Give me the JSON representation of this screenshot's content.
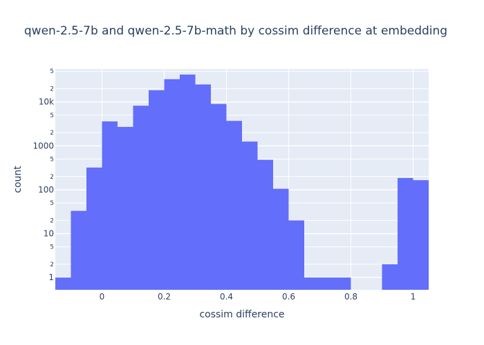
{
  "chart_data": {
    "type": "bar",
    "title": "qwen-2.5-7b and qwen-2.5-7b-math by cossim difference at embedding",
    "xlabel": "cossim difference",
    "ylabel": "count",
    "x_range": [
      -0.15,
      1.05
    ],
    "y_scale": "log",
    "y_range_log10": [
      -0.28,
      4.75
    ],
    "grid": true,
    "bin_width": 0.05,
    "bar_color": "#636efa",
    "plot_bgcolor": "#e5ecf6",
    "x_ticks": [
      {
        "value": 0,
        "label": "0"
      },
      {
        "value": 0.2,
        "label": "0.2"
      },
      {
        "value": 0.4,
        "label": "0.4"
      },
      {
        "value": 0.6,
        "label": "0.6"
      },
      {
        "value": 0.8,
        "label": "0.8"
      },
      {
        "value": 1,
        "label": "1"
      }
    ],
    "y_major_ticks": [
      {
        "value": 1,
        "label": "1"
      },
      {
        "value": 10,
        "label": "10"
      },
      {
        "value": 100,
        "label": "100"
      },
      {
        "value": 1000,
        "label": "1000"
      },
      {
        "value": 10000,
        "label": "10k"
      }
    ],
    "y_minor_ticks": [
      {
        "value": 2,
        "label": "2"
      },
      {
        "value": 5,
        "label": "5"
      },
      {
        "value": 20,
        "label": "2"
      },
      {
        "value": 50,
        "label": "5"
      },
      {
        "value": 200,
        "label": "2"
      },
      {
        "value": 500,
        "label": "5"
      },
      {
        "value": 2000,
        "label": "2"
      },
      {
        "value": 5000,
        "label": "5"
      },
      {
        "value": 20000,
        "label": "2"
      },
      {
        "value": 50000,
        "label": "5"
      }
    ],
    "bins": [
      {
        "x0": -0.15,
        "x1": -0.1,
        "count": 1
      },
      {
        "x0": -0.1,
        "x1": -0.05,
        "count": 33
      },
      {
        "x0": -0.05,
        "x1": 0.0,
        "count": 320
      },
      {
        "x0": 0.0,
        "x1": 0.05,
        "count": 3600
      },
      {
        "x0": 0.05,
        "x1": 0.1,
        "count": 2700
      },
      {
        "x0": 0.1,
        "x1": 0.15,
        "count": 8200
      },
      {
        "x0": 0.15,
        "x1": 0.2,
        "count": 18500
      },
      {
        "x0": 0.2,
        "x1": 0.25,
        "count": 33000
      },
      {
        "x0": 0.25,
        "x1": 0.3,
        "count": 42000
      },
      {
        "x0": 0.3,
        "x1": 0.35,
        "count": 25000
      },
      {
        "x0": 0.35,
        "x1": 0.4,
        "count": 9000
      },
      {
        "x0": 0.4,
        "x1": 0.45,
        "count": 3700
      },
      {
        "x0": 0.45,
        "x1": 0.5,
        "count": 1250
      },
      {
        "x0": 0.5,
        "x1": 0.55,
        "count": 480
      },
      {
        "x0": 0.55,
        "x1": 0.6,
        "count": 105
      },
      {
        "x0": 0.6,
        "x1": 0.65,
        "count": 20
      },
      {
        "x0": 0.65,
        "x1": 0.7,
        "count": 1
      },
      {
        "x0": 0.7,
        "x1": 0.75,
        "count": 1
      },
      {
        "x0": 0.75,
        "x1": 0.8,
        "count": 1
      },
      {
        "x0": 0.9,
        "x1": 0.95,
        "count": 2
      },
      {
        "x0": 0.95,
        "x1": 1.0,
        "count": 185
      },
      {
        "x0": 1.0,
        "x1": 1.05,
        "count": 165
      }
    ]
  }
}
